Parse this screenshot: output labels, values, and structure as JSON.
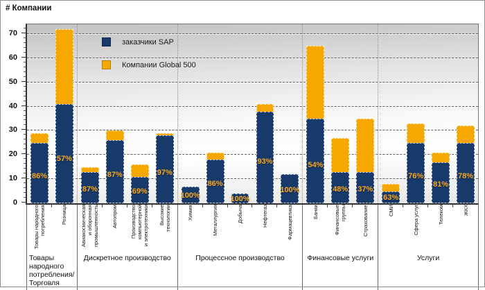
{
  "title": "# Компании",
  "legend": {
    "items": [
      {
        "label": "заказчики SAP",
        "color": "#173A6B"
      },
      {
        "label": "Компании Global 500",
        "color": "#F6A800"
      }
    ]
  },
  "colors": {
    "sap_blue": "#173A6B",
    "global500_orange": "#F6A800",
    "pct_label": "#FFAD1F",
    "axis_text": "#111111"
  },
  "chart_data": {
    "type": "bar",
    "stacked": true,
    "title": "# Компании",
    "ylabel": "# Компании",
    "ylim": [
      0,
      74
    ],
    "yticks": [
      0,
      10,
      20,
      30,
      40,
      50,
      60,
      70
    ],
    "grid": "horizontal-dashed",
    "legend_position": "top-left-inside",
    "series_names": [
      "заказчики SAP",
      "Компании Global 500"
    ],
    "note": "pct_label = доля заказчиков SAP от общего числа компаний; sap + global500_extra = total",
    "groups": [
      {
        "name": "Товары народного\nпотребления/\nТорговля",
        "categories": [
          {
            "label": "Товары народного\nпотребления",
            "sap": 25,
            "global500_extra": 4,
            "total": 29,
            "pct_label": "86%"
          },
          {
            "label": "Розница",
            "sap": 41,
            "global500_extra": 31,
            "total": 72,
            "pct_label": "57%"
          }
        ]
      },
      {
        "name": "Дискретное производство",
        "categories": [
          {
            "label": "Авиакосмическая\nи оборонная\nпромышленность",
            "sap": 13,
            "global500_extra": 2,
            "total": 15,
            "pct_label": "87%"
          },
          {
            "label": "Автопром",
            "sap": 26,
            "global500_extra": 4,
            "total": 30,
            "pct_label": "87%"
          },
          {
            "label": "Производство\nкомпьютерной\nи электротехники",
            "sap": 11,
            "global500_extra": 5,
            "total": 16,
            "pct_label": "69%"
          },
          {
            "label": "Высокие технологии",
            "sap": 28,
            "global500_extra": 1,
            "total": 29,
            "pct_label": "97%"
          }
        ]
      },
      {
        "name": "Процессное производство",
        "categories": [
          {
            "label": "Химия",
            "sap": 7,
            "global500_extra": 0,
            "total": 7,
            "pct_label": "100%"
          },
          {
            "label": "Металлургия",
            "sap": 18,
            "global500_extra": 3,
            "total": 21,
            "pct_label": "86%"
          },
          {
            "label": "Добыча",
            "sap": 4,
            "global500_extra": 0,
            "total": 4,
            "pct_label": "100%"
          },
          {
            "label": "Нефтегаз",
            "sap": 38,
            "global500_extra": 3,
            "total": 41,
            "pct_label": "93%"
          },
          {
            "label": "Фармацевтика",
            "sap": 12,
            "global500_extra": 0,
            "total": 12,
            "pct_label": "100%"
          }
        ]
      },
      {
        "name": "Финансовые услуги",
        "categories": [
          {
            "label": "Банки",
            "sap": 35,
            "global500_extra": 30,
            "total": 65,
            "pct_label": "54%"
          },
          {
            "label": "Финансовые\nгруппы",
            "sap": 13,
            "global500_extra": 14,
            "total": 27,
            "pct_label": "48%"
          },
          {
            "label": "Страхование",
            "sap": 13,
            "global500_extra": 22,
            "total": 35,
            "pct_label": "37%"
          }
        ]
      },
      {
        "name": "Услуги",
        "categories": [
          {
            "label": "СМИ",
            "sap": 5,
            "global500_extra": 3,
            "total": 8,
            "pct_label": "63%"
          },
          {
            "label": "Сфера услуг",
            "sap": 25,
            "global500_extra": 8,
            "total": 33,
            "pct_label": "76%"
          },
          {
            "label": "Телеком",
            "sap": 17,
            "global500_extra": 4,
            "total": 21,
            "pct_label": "81%"
          },
          {
            "label": "ЖКХ",
            "sap": 25,
            "global500_extra": 7,
            "total": 32,
            "pct_label": "78%"
          }
        ]
      }
    ]
  }
}
